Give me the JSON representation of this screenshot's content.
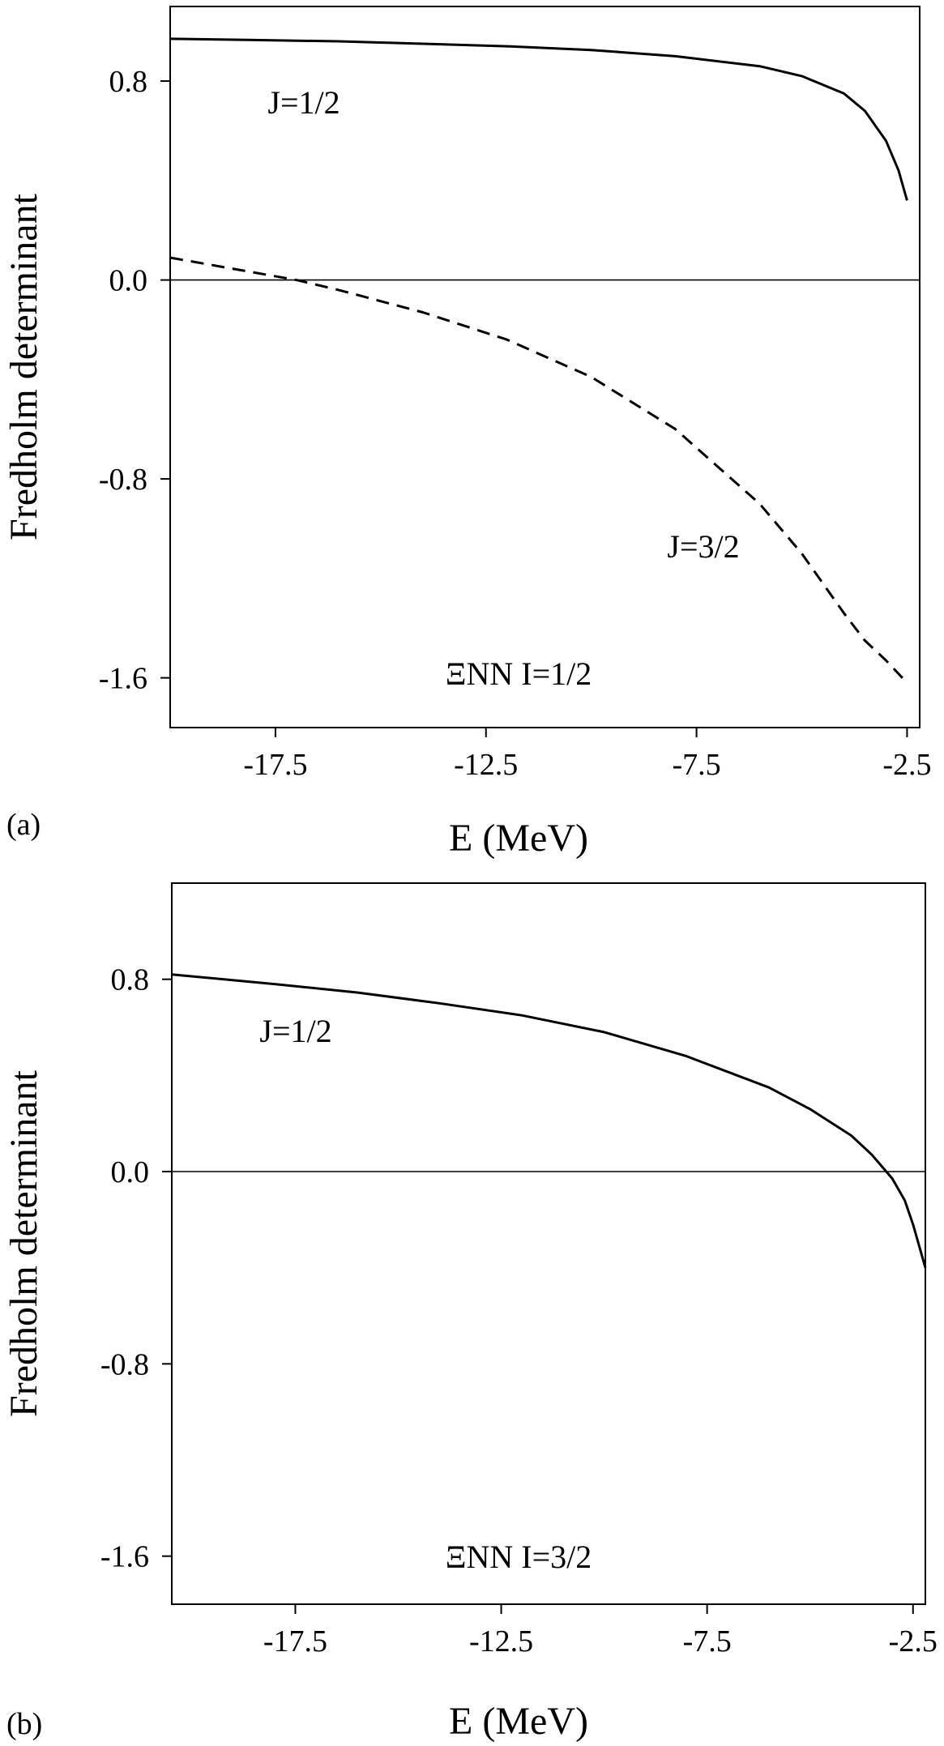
{
  "chart_data": [
    {
      "type": "line",
      "panel_label": "(a)",
      "xlabel": "E (MeV)",
      "ylabel": "Fredholm determinant",
      "xlim": [
        -20.0,
        -2.2
      ],
      "ylim": [
        -1.8,
        1.1
      ],
      "xticks": [
        -17.5,
        -12.5,
        -7.5,
        -2.5
      ],
      "xtick_labels": [
        "-17.5",
        "-12.5",
        "-7.5",
        "-2.5"
      ],
      "yticks": [
        0.8,
        0.0,
        -0.8,
        -1.6
      ],
      "ytick_labels": [
        "0.8",
        "0.0",
        "-0.8",
        "-1.6"
      ],
      "zero_line": true,
      "grid": false,
      "annotation": "ΞNN  I=1/2",
      "series": [
        {
          "name": "J=1/2",
          "style": "solid",
          "color": "#000000",
          "x": [
            -20.0,
            -18.0,
            -16.0,
            -14.0,
            -12.0,
            -10.0,
            -8.0,
            -6.0,
            -5.0,
            -4.0,
            -3.5,
            -3.0,
            -2.7,
            -2.5
          ],
          "y": [
            0.97,
            0.965,
            0.96,
            0.95,
            0.94,
            0.925,
            0.9,
            0.86,
            0.82,
            0.75,
            0.68,
            0.56,
            0.44,
            0.32
          ]
        },
        {
          "name": "J=3/2",
          "style": "dashed",
          "color": "#000000",
          "x": [
            -20.0,
            -18.0,
            -17.0,
            -16.0,
            -14.0,
            -12.0,
            -10.0,
            -8.0,
            -6.0,
            -5.0,
            -4.5,
            -4.0,
            -3.5,
            -3.0,
            -2.5
          ],
          "y": [
            0.09,
            0.03,
            0.0,
            -0.04,
            -0.13,
            -0.24,
            -0.39,
            -0.6,
            -0.9,
            -1.1,
            -1.22,
            -1.34,
            -1.45,
            -1.53,
            -1.62
          ]
        }
      ]
    },
    {
      "type": "line",
      "panel_label": "(b)",
      "xlabel": "E (MeV)",
      "ylabel": "Fredholm determinant",
      "xlim": [
        -20.5,
        -2.2
      ],
      "ylim": [
        -1.8,
        1.2
      ],
      "xticks": [
        -17.5,
        -12.5,
        -7.5,
        -2.5
      ],
      "xtick_labels": [
        "-17.5",
        "-12.5",
        "-7.5",
        "-2.5"
      ],
      "yticks": [
        0.8,
        0.0,
        -0.8,
        -1.6
      ],
      "ytick_labels": [
        "0.8",
        "0.0",
        "-0.8",
        "-1.6"
      ],
      "zero_line": true,
      "grid": false,
      "annotation": "ΞNN  I=3/2",
      "series": [
        {
          "name": "J=1/2",
          "style": "solid",
          "color": "#000000",
          "x": [
            -20.5,
            -18.0,
            -16.0,
            -14.0,
            -12.0,
            -10.0,
            -8.0,
            -6.0,
            -5.0,
            -4.0,
            -3.5,
            -3.2,
            -3.0,
            -2.7,
            -2.5,
            -2.2
          ],
          "y": [
            0.82,
            0.78,
            0.745,
            0.7,
            0.65,
            0.58,
            0.48,
            0.35,
            0.26,
            0.15,
            0.07,
            0.01,
            -0.03,
            -0.12,
            -0.22,
            -0.4
          ]
        }
      ]
    }
  ]
}
